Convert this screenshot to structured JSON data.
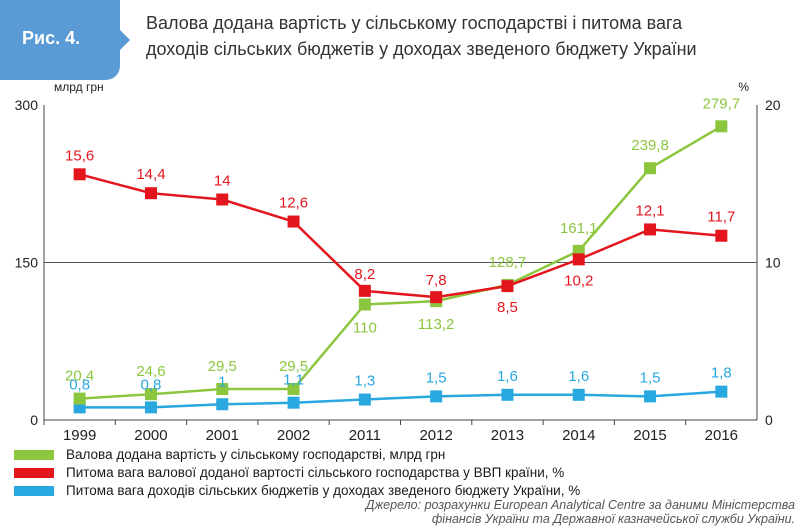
{
  "figure": {
    "badge": "Рис. 4.",
    "title_line1": "Валова додана вартість у сільському господарстві і питома вага",
    "title_line2": "доходів сільських бюджетів у доходах зведеного бюджету України"
  },
  "chart_data": {
    "type": "line",
    "categories": [
      "1999",
      "2000",
      "2001",
      "2002",
      "2011",
      "2012",
      "2013",
      "2014",
      "2015",
      "2016"
    ],
    "y_left": {
      "label": "млрд грн",
      "ylim": [
        0,
        300
      ],
      "ticks": [
        "0",
        "150",
        "300"
      ]
    },
    "y_right": {
      "label": "%",
      "ylim": [
        0,
        20
      ],
      "ticks": [
        "0",
        "10",
        "20"
      ]
    },
    "grid": false,
    "legend_position": "bottom-left",
    "series": [
      {
        "name": "Валова додана вартість у сільському господарстві, млрд грн",
        "axis": "left",
        "color": "#8cc63f",
        "values": [
          20.4,
          24.6,
          29.5,
          29.5,
          110,
          113.2,
          128.7,
          161.1,
          239.8,
          279.7
        ],
        "labels": [
          "20,4",
          "24,6",
          "29,5",
          "29,5",
          "110",
          "113,2",
          "128,7",
          "161,1",
          "239,8",
          "279,7"
        ]
      },
      {
        "name": "Питома вага валової доданої вартості сільського господарства у ВВП країни, %",
        "axis": "right",
        "color": "#e3161e",
        "values": [
          15.6,
          14.4,
          14,
          12.6,
          8.2,
          7.8,
          8.5,
          10.2,
          12.1,
          11.7
        ],
        "labels": [
          "15,6",
          "14,4",
          "14",
          "12,6",
          "8,2",
          "7,8",
          "8,5",
          "10,2",
          "12,1",
          "11,7"
        ]
      },
      {
        "name": "Питома вага доходів сільських бюджетів у доходах зведеного бюджету України, %",
        "axis": "right",
        "color": "#29a8e0",
        "values": [
          0.8,
          0.8,
          1,
          1.1,
          1.3,
          1.5,
          1.6,
          1.6,
          1.5,
          1.8
        ],
        "labels": [
          "0,8",
          "0,8",
          "1",
          "1,1",
          "1,3",
          "1,5",
          "1,6",
          "1,6",
          "1,5",
          "1,8"
        ]
      }
    ]
  },
  "source": {
    "line1": "Джерело: розрахунки European Analytical Centre за даними Міністерства",
    "line2": "фінансів України та Державної казначейської служби України."
  }
}
